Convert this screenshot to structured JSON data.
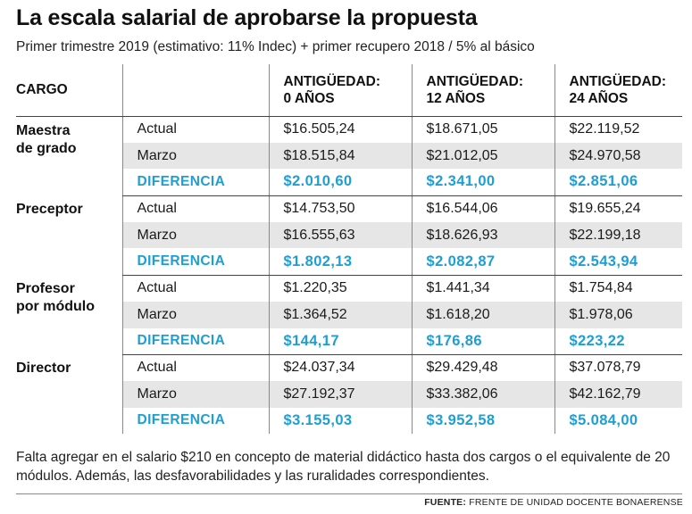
{
  "title": "La escala salarial de aprobarse la propuesta",
  "subtitle": "Primer trimestre 2019 (estimativo: 11% Indec) + primer recupero 2018 / 5% al básico",
  "chart_data": {
    "type": "table",
    "columns": {
      "cargo": "CARGO",
      "col0_line1": "ANTIGÜEDAD:",
      "col0_line2": "0 AÑOS",
      "col12_line1": "ANTIGÜEDAD:",
      "col12_line2": "12 AÑOS",
      "col24_line1": "ANTIGÜEDAD:",
      "col24_line2": "24 AÑOS"
    },
    "groups": [
      {
        "cargo_line1": "Maestra",
        "cargo_line2": "de grado",
        "rows": [
          {
            "label": "Actual",
            "values": [
              "$16.505,24",
              "$18.671,05",
              "$22.119,52"
            ]
          },
          {
            "label": "Marzo",
            "values": [
              "$18.515,84",
              "$21.012,05",
              "$24.970,58"
            ]
          },
          {
            "label": "DIFERENCIA",
            "values": [
              "$2.010,60",
              "$2.341,00",
              "$2.851,06"
            ]
          }
        ]
      },
      {
        "cargo_line1": "Preceptor",
        "cargo_line2": "",
        "rows": [
          {
            "label": "Actual",
            "values": [
              "$14.753,50",
              "$16.544,06",
              "$19.655,24"
            ]
          },
          {
            "label": "Marzo",
            "values": [
              "$16.555,63",
              "$18.626,93",
              "$22.199,18"
            ]
          },
          {
            "label": "DIFERENCIA",
            "values": [
              "$1.802,13",
              "$2.082,87",
              "$2.543,94"
            ]
          }
        ]
      },
      {
        "cargo_line1": "Profesor",
        "cargo_line2": "por módulo",
        "rows": [
          {
            "label": "Actual",
            "values": [
              "$1.220,35",
              "$1.441,34",
              "$1.754,84"
            ]
          },
          {
            "label": "Marzo",
            "values": [
              "$1.364,52",
              "$1.618,20",
              "$1.978,06"
            ]
          },
          {
            "label": "DIFERENCIA",
            "values": [
              "$144,17",
              "$176,86",
              "$223,22"
            ]
          }
        ]
      },
      {
        "cargo_line1": "Director",
        "cargo_line2": "",
        "rows": [
          {
            "label": "Actual",
            "values": [
              "$24.037,34",
              "$29.429,48",
              "$37.078,79"
            ]
          },
          {
            "label": "Marzo",
            "values": [
              "$27.192,37",
              "$33.382,06",
              "$42.162,79"
            ]
          },
          {
            "label": "DIFERENCIA",
            "values": [
              "$3.155,03",
              "$3.952,58",
              "$5.084,00"
            ]
          }
        ]
      }
    ]
  },
  "note": "Falta agregar en el salario $210 en concepto de material didáctico hasta dos cargos o el equivalente de 20 módulos. Además, las desfavorabilidades y las ruralidades correspondientes.",
  "source_label": "FUENTE:",
  "source_text": "FRENTE DE UNIDAD DOCENTE BONAERENSE",
  "colors": {
    "accent": "#1d9fd4",
    "shade": "#e6e6e6"
  }
}
